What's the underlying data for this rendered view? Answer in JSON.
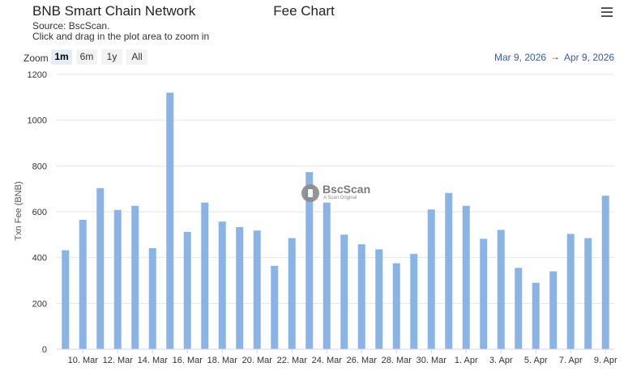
{
  "header": {
    "title_left": "BNB Smart Chain Network",
    "title_right": "Fee Chart",
    "source": "Source: BscScan.",
    "hint": "Click and drag in the plot area to zoom in"
  },
  "menu_icon": "hamburger-menu-icon",
  "zoom": {
    "label": "Zoom",
    "buttons": [
      "1m",
      "6m",
      "1y",
      "All"
    ],
    "selected": "1m"
  },
  "range": {
    "from": "Mar 9, 2026",
    "arrow": "→",
    "to": "Apr 9, 2026"
  },
  "watermark": {
    "name": "BscScan",
    "tagline": "A Scan Original"
  },
  "colors": {
    "bar": "#8ab3e6",
    "grid": "#e6e6e6",
    "range_text": "#335cad"
  },
  "chart_data": {
    "type": "bar",
    "ylabel": "Txn Fee (BNB)",
    "xlabel": "",
    "ylim": [
      0,
      1200
    ],
    "yticks": [
      0,
      200,
      400,
      600,
      800,
      1000,
      1200
    ],
    "grid": true,
    "legend": "none",
    "x": [
      "2026-03-09",
      "2026-03-10",
      "2026-03-11",
      "2026-03-12",
      "2026-03-13",
      "2026-03-14",
      "2026-03-15",
      "2026-03-16",
      "2026-03-17",
      "2026-03-18",
      "2026-03-19",
      "2026-03-20",
      "2026-03-21",
      "2026-03-22",
      "2026-03-23",
      "2026-03-24",
      "2026-03-25",
      "2026-03-26",
      "2026-03-27",
      "2026-03-28",
      "2026-03-29",
      "2026-03-30",
      "2026-03-31",
      "2026-04-01",
      "2026-04-02",
      "2026-04-03",
      "2026-04-04",
      "2026-04-05",
      "2026-04-06",
      "2026-04-07",
      "2026-04-08",
      "2026-04-09"
    ],
    "values": [
      432,
      565,
      703,
      608,
      626,
      441,
      1120,
      512,
      640,
      557,
      533,
      518,
      364,
      485,
      773,
      640,
      500,
      458,
      436,
      375,
      416,
      610,
      682,
      626,
      482,
      521,
      355,
      290,
      340,
      503,
      485,
      670
    ],
    "xtick_labels": [
      "10. Mar",
      "12. Mar",
      "14. Mar",
      "16. Mar",
      "18. Mar",
      "20. Mar",
      "22. Mar",
      "24. Mar",
      "26. Mar",
      "28. Mar",
      "30. Mar",
      "1. Apr",
      "3. Apr",
      "5. Apr",
      "7. Apr",
      "9. Apr"
    ],
    "xtick_indices": [
      1,
      3,
      5,
      7,
      9,
      11,
      13,
      15,
      17,
      19,
      21,
      23,
      25,
      27,
      29,
      31
    ]
  }
}
